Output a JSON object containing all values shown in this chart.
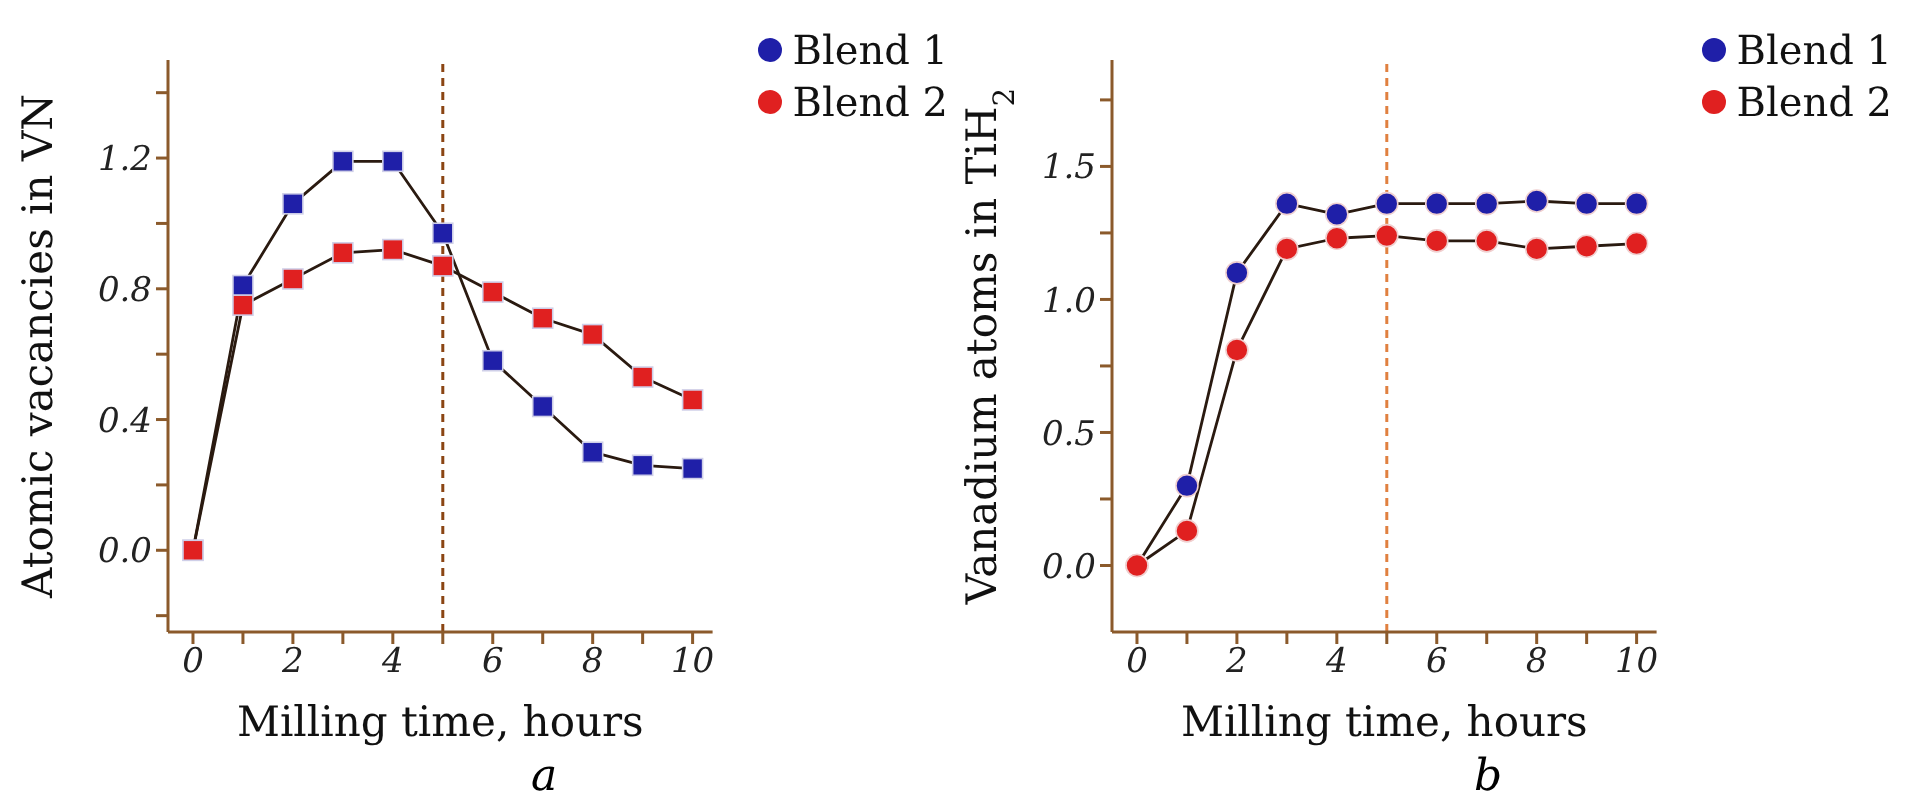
{
  "chart_data": [
    {
      "type": "line",
      "xlabel": "Milling time, hours",
      "ylabel": "Atomic vacancies in VN",
      "annotations": [
        "a"
      ],
      "marker": "square",
      "legend": "top right",
      "grid": false,
      "xlim": [
        -0.5,
        10.4
      ],
      "ylim": [
        -0.25,
        1.5
      ],
      "xticks": [
        0,
        {
          "value": 1,
          "label": null
        },
        2,
        {
          "value": 3,
          "label": null
        },
        4,
        {
          "value": 5,
          "label": null
        },
        6,
        {
          "value": 7,
          "label": null
        },
        8,
        {
          "value": 9,
          "label": null
        },
        10
      ],
      "yticks": [
        {
          "value": -0.2,
          "label": null
        },
        {
          "value": 0,
          "label": "0.0"
        },
        {
          "value": 0.2,
          "label": null
        },
        0.4,
        {
          "value": 0.6,
          "label": null
        },
        0.8,
        {
          "value": 1.0,
          "label": null
        },
        1.2,
        {
          "value": 1.4,
          "label": null
        }
      ],
      "x": [
        0,
        1,
        2,
        3,
        4,
        5,
        6,
        7,
        8,
        9,
        10
      ],
      "ref_lines": [
        {
          "axis": "x",
          "value": 5,
          "color": "#8b4513",
          "line_style": "dashed"
        }
      ],
      "series": [
        {
          "name": "Blend 1",
          "color": "#1f1fa8",
          "values": [
            0,
            0.81,
            1.06,
            1.19,
            1.19,
            0.97,
            0.58,
            0.44,
            0.3,
            0.26,
            0.25
          ]
        },
        {
          "name": "Blend 2",
          "color": "#e02020",
          "values": [
            0,
            0.75,
            0.83,
            0.91,
            0.92,
            0.87,
            0.79,
            0.71,
            0.66,
            0.53,
            0.46
          ]
        }
      ]
    },
    {
      "type": "line",
      "xlabel": "Milling time, hours",
      "ylabel": "Vanadium atoms in TiH$_{2}$",
      "annotations": [
        "b"
      ],
      "marker": "circle",
      "legend": "top right",
      "grid": false,
      "xlim": [
        -0.5,
        10.4
      ],
      "ylim": [
        -0.25,
        1.9
      ],
      "xticks": [
        0,
        {
          "value": 1,
          "label": null
        },
        2,
        {
          "value": 3,
          "label": null
        },
        4,
        {
          "value": 5,
          "label": null
        },
        6,
        {
          "value": 7,
          "label": null
        },
        8,
        {
          "value": 9,
          "label": null
        },
        10
      ],
      "yticks": [
        {
          "value": 0,
          "label": "0.0"
        },
        {
          "value": 0.25,
          "label": null
        },
        {
          "value": 0.5,
          "label": "0.5"
        },
        {
          "value": 0.75,
          "label": null
        },
        {
          "value": 1,
          "label": "1.0"
        },
        {
          "value": 1.25,
          "label": null
        },
        {
          "value": 1.5,
          "label": "1.5"
        },
        {
          "value": 1.75,
          "label": null
        }
      ],
      "x": [
        0,
        1,
        2,
        3,
        4,
        5,
        6,
        7,
        8,
        9,
        10
      ],
      "ref_lines": [
        {
          "axis": "x",
          "value": 5,
          "color": "#e08040",
          "line_style": "dashed"
        }
      ],
      "series": [
        {
          "name": "Blend 1",
          "color": "#1f1fa8",
          "values": [
            0,
            0.3,
            1.1,
            1.36,
            1.32,
            1.36,
            1.36,
            1.36,
            1.37,
            1.36,
            1.36
          ]
        },
        {
          "name": "Blend 2",
          "color": "#e02020",
          "values": [
            0,
            0.13,
            0.81,
            1.19,
            1.23,
            1.24,
            1.22,
            1.22,
            1.19,
            1.2,
            1.21
          ]
        }
      ]
    }
  ]
}
